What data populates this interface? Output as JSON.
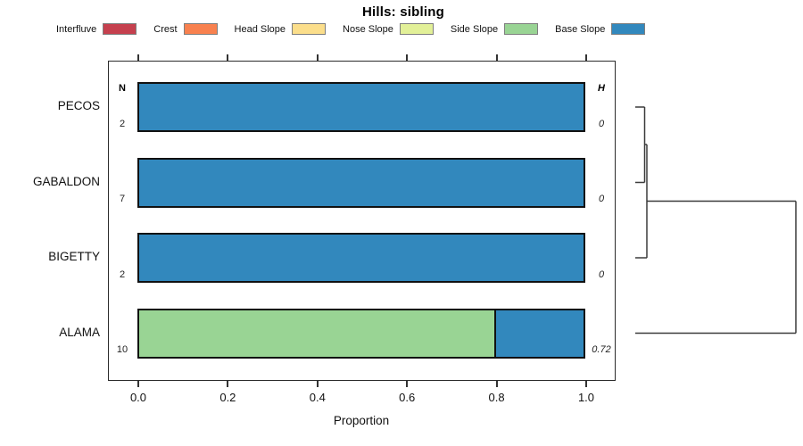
{
  "title": "Hills: sibling",
  "legend": [
    {
      "label": "Interfluve",
      "color": "#C5404E"
    },
    {
      "label": "Crest",
      "color": "#F8814F"
    },
    {
      "label": "Head Slope",
      "color": "#FBDE8B"
    },
    {
      "label": "Nose Slope",
      "color": "#E2F098"
    },
    {
      "label": "Side Slope",
      "color": "#99D494"
    },
    {
      "label": "Base Slope",
      "color": "#3288BD"
    }
  ],
  "columns": {
    "n_header": "N",
    "h_header": "H"
  },
  "axis": {
    "xlabel": "Proportion",
    "tick_labels": [
      "0.0",
      "0.2",
      "0.4",
      "0.6",
      "0.8",
      "1.0"
    ],
    "tick_values": [
      0,
      0.2,
      0.4,
      0.6,
      0.8,
      1
    ]
  },
  "chart_data": {
    "type": "bar",
    "orientation": "horizontal",
    "stacked": true,
    "title": "Hills: sibling",
    "xlabel": "Proportion",
    "xlim": [
      0,
      1
    ],
    "grid": false,
    "legend_position": "top",
    "legend_entries": [
      "Interfluve",
      "Crest",
      "Head Slope",
      "Nose Slope",
      "Side Slope",
      "Base Slope"
    ],
    "categories": [
      "PECOS",
      "GABALDON",
      "BIGETTY",
      "ALAMA"
    ],
    "rows": [
      {
        "label": "PECOS",
        "n": "2",
        "h": "0",
        "segments": [
          {
            "name": "Base Slope",
            "value": 1.0
          }
        ]
      },
      {
        "label": "GABALDON",
        "n": "7",
        "h": "0",
        "segments": [
          {
            "name": "Base Slope",
            "value": 1.0
          }
        ]
      },
      {
        "label": "BIGETTY",
        "n": "2",
        "h": "0",
        "segments": [
          {
            "name": "Base Slope",
            "value": 1.0
          }
        ]
      },
      {
        "label": "ALAMA",
        "n": "10",
        "h": "0.72",
        "segments": [
          {
            "name": "Side Slope",
            "value": 0.8
          },
          {
            "name": "Base Slope",
            "value": 0.2
          }
        ]
      }
    ]
  },
  "dendrogram": {
    "joins": [
      {
        "members": [
          "PECOS",
          "GABALDON"
        ]
      },
      {
        "members": [
          "PECOS+GABALDON",
          "BIGETTY"
        ]
      },
      {
        "members": [
          "PECOS+GABALDON+BIGETTY",
          "ALAMA"
        ]
      }
    ],
    "segments": [
      [
        712,
        120,
        722.5,
        120
      ],
      [
        722.5,
        120,
        722.5,
        204.5
      ],
      [
        712,
        204.5,
        722.5,
        204.5
      ],
      [
        722.5,
        162,
        725,
        162
      ],
      [
        725,
        162,
        725,
        289
      ],
      [
        712,
        289,
        725,
        289
      ],
      [
        725,
        225.5,
        892,
        225.5
      ],
      [
        892,
        225.5,
        892,
        373.5
      ],
      [
        712,
        373.5,
        892,
        373.5
      ]
    ]
  }
}
